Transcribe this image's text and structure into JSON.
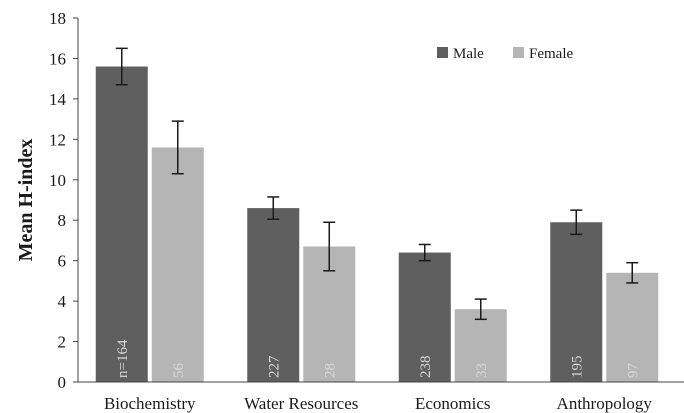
{
  "chart_data": {
    "type": "bar",
    "ylabel": "Mean H-index",
    "ylim": [
      0,
      18
    ],
    "yticks": [
      0,
      2,
      4,
      6,
      8,
      10,
      12,
      14,
      16,
      18
    ],
    "grid": false,
    "legend_position": "top-right",
    "categories": [
      "Biochemistry",
      "Water Resources",
      "Economics",
      "Anthropology"
    ],
    "series": [
      {
        "name": "Male",
        "color": "#5f5f5f",
        "values": [
          15.6,
          8.6,
          6.4,
          7.9
        ],
        "error": [
          0.9,
          0.55,
          0.4,
          0.6
        ],
        "n": [
          "n=164",
          "227",
          "238",
          "195"
        ]
      },
      {
        "name": "Female",
        "color": "#b5b5b5",
        "values": [
          11.6,
          6.7,
          3.6,
          5.4
        ],
        "error": [
          1.3,
          1.2,
          0.5,
          0.5
        ],
        "n": [
          "56",
          "28",
          "33",
          "97"
        ]
      }
    ]
  }
}
